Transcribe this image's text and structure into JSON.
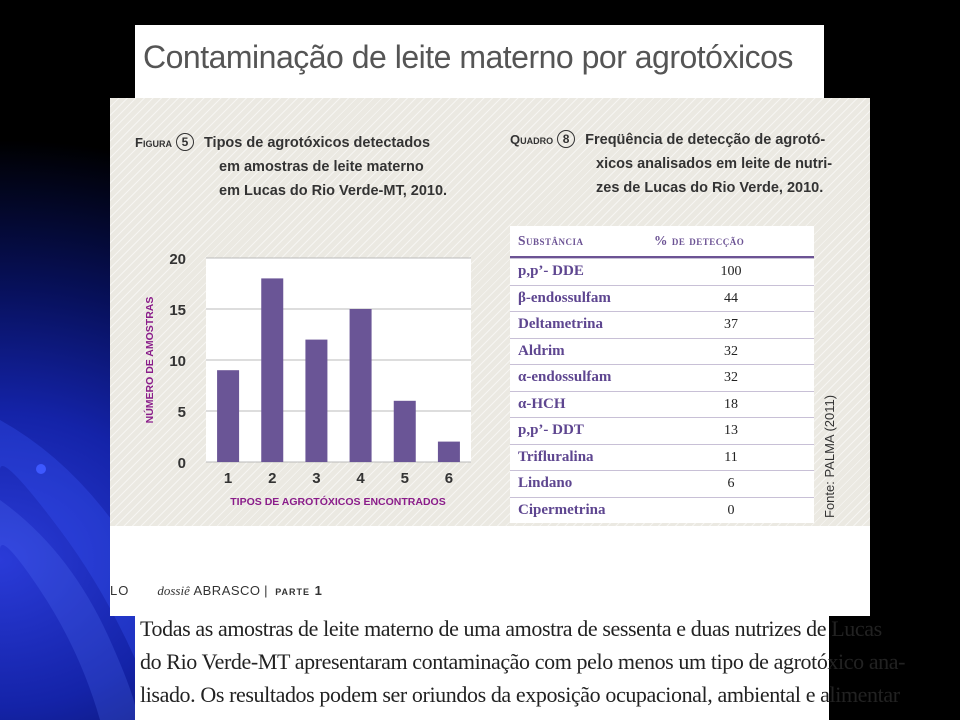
{
  "slide": {
    "title": "Contaminação de leite materno por agrotóxicos"
  },
  "figure": {
    "label": "Figura",
    "number": "5",
    "caption_lines": [
      "Tipos de agrotóxicos detectados",
      "em amostras de leite materno",
      "em Lucas do Rio Verde-MT, 2010."
    ]
  },
  "quadro": {
    "label": "Quadro",
    "number": "8",
    "caption_lines": [
      "Freqüência de detecção de agrotó-",
      "xicos analisados  em leite de nutri-",
      "zes de Lucas do Rio Verde,  2010."
    ],
    "headers": [
      "Substância",
      "% de detecção"
    ],
    "rows": [
      {
        "substance": "p,p’- DDE",
        "percent": "100"
      },
      {
        "substance": "β-endossulfam",
        "percent": "44"
      },
      {
        "substance": "Deltametrina",
        "percent": "37"
      },
      {
        "substance": "Aldrim",
        "percent": "32"
      },
      {
        "substance": "α-endossulfam",
        "percent": "32"
      },
      {
        "substance": "α-HCH",
        "percent": "18"
      },
      {
        "substance": "p,p’- DDT",
        "percent": "13"
      },
      {
        "substance": "Trifluralina",
        "percent": "11"
      },
      {
        "substance": "Lindano",
        "percent": "6"
      },
      {
        "substance": "Cipermetrina",
        "percent": "0"
      }
    ]
  },
  "source_note": "Fonte: PALMA (2011)",
  "page_footer": {
    "page_num": "LO",
    "dossie": "dossiê",
    "abrasco": "ABRASCO",
    "sep": "|",
    "parte": "parte 1"
  },
  "body_lines": [
    "Todas as amostras de leite materno de uma amostra de sessenta e duas nutrizes de Lucas",
    "do Rio Verde-MT apresentaram contaminação com pelo menos um tipo de agrotóxico ana-",
    "lisado. Os resultados podem ser oriundos da exposição ocupacional, ambiental e alimentar"
  ],
  "chart_data": {
    "type": "bar",
    "categories": [
      "1",
      "2",
      "3",
      "4",
      "5",
      "6"
    ],
    "values": [
      9,
      18,
      12,
      15,
      6,
      2
    ],
    "xlabel": "TIPOS DE AGROTÓXICOS ENCONTRADOS",
    "ylabel": "NÚMERO DE AMOSTRAS",
    "ylim": [
      0,
      20
    ],
    "yticks": [
      0,
      5,
      10,
      15,
      20
    ],
    "grid": true,
    "bar_color": "#6a5596",
    "label_color": "#8a1d8a"
  }
}
